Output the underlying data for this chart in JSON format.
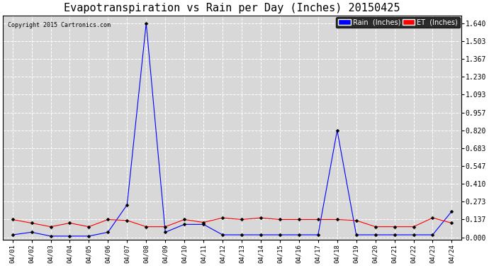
{
  "title": "Evapotranspiration vs Rain per Day (Inches) 20150425",
  "copyright": "Copyright 2015 Cartronics.com",
  "background_color": "#ffffff",
  "plot_bg_color": "#d8d8d8",
  "grid_color": "#ffffff",
  "dates": [
    "04/01",
    "04/02",
    "04/03",
    "04/04",
    "04/05",
    "04/06",
    "04/07",
    "04/08",
    "04/09",
    "04/10",
    "04/11",
    "04/12",
    "04/13",
    "04/14",
    "04/15",
    "04/16",
    "04/17",
    "04/18",
    "04/19",
    "04/20",
    "04/21",
    "04/22",
    "04/23",
    "04/24"
  ],
  "rain": [
    0.02,
    0.04,
    0.01,
    0.01,
    0.01,
    0.04,
    0.25,
    1.64,
    0.04,
    0.1,
    0.1,
    0.02,
    0.02,
    0.02,
    0.02,
    0.02,
    0.02,
    0.82,
    0.02,
    0.02,
    0.02,
    0.02,
    0.02,
    0.2
  ],
  "et": [
    0.137,
    0.11,
    0.082,
    0.11,
    0.082,
    0.137,
    0.13,
    0.082,
    0.082,
    0.137,
    0.115,
    0.15,
    0.137,
    0.15,
    0.137,
    0.137,
    0.137,
    0.137,
    0.13,
    0.082,
    0.082,
    0.082,
    0.15,
    0.11
  ],
  "rain_color": "#0000ff",
  "et_color": "#ff0000",
  "yticks": [
    0.0,
    0.137,
    0.273,
    0.41,
    0.547,
    0.683,
    0.82,
    0.957,
    1.093,
    1.23,
    1.367,
    1.503,
    1.64
  ],
  "ylim": [
    -0.02,
    1.7
  ],
  "title_fontsize": 11,
  "legend_rain_label": "Rain  (Inches)",
  "legend_et_label": "ET  (Inches)",
  "figsize": [
    6.9,
    3.75
  ],
  "dpi": 100
}
